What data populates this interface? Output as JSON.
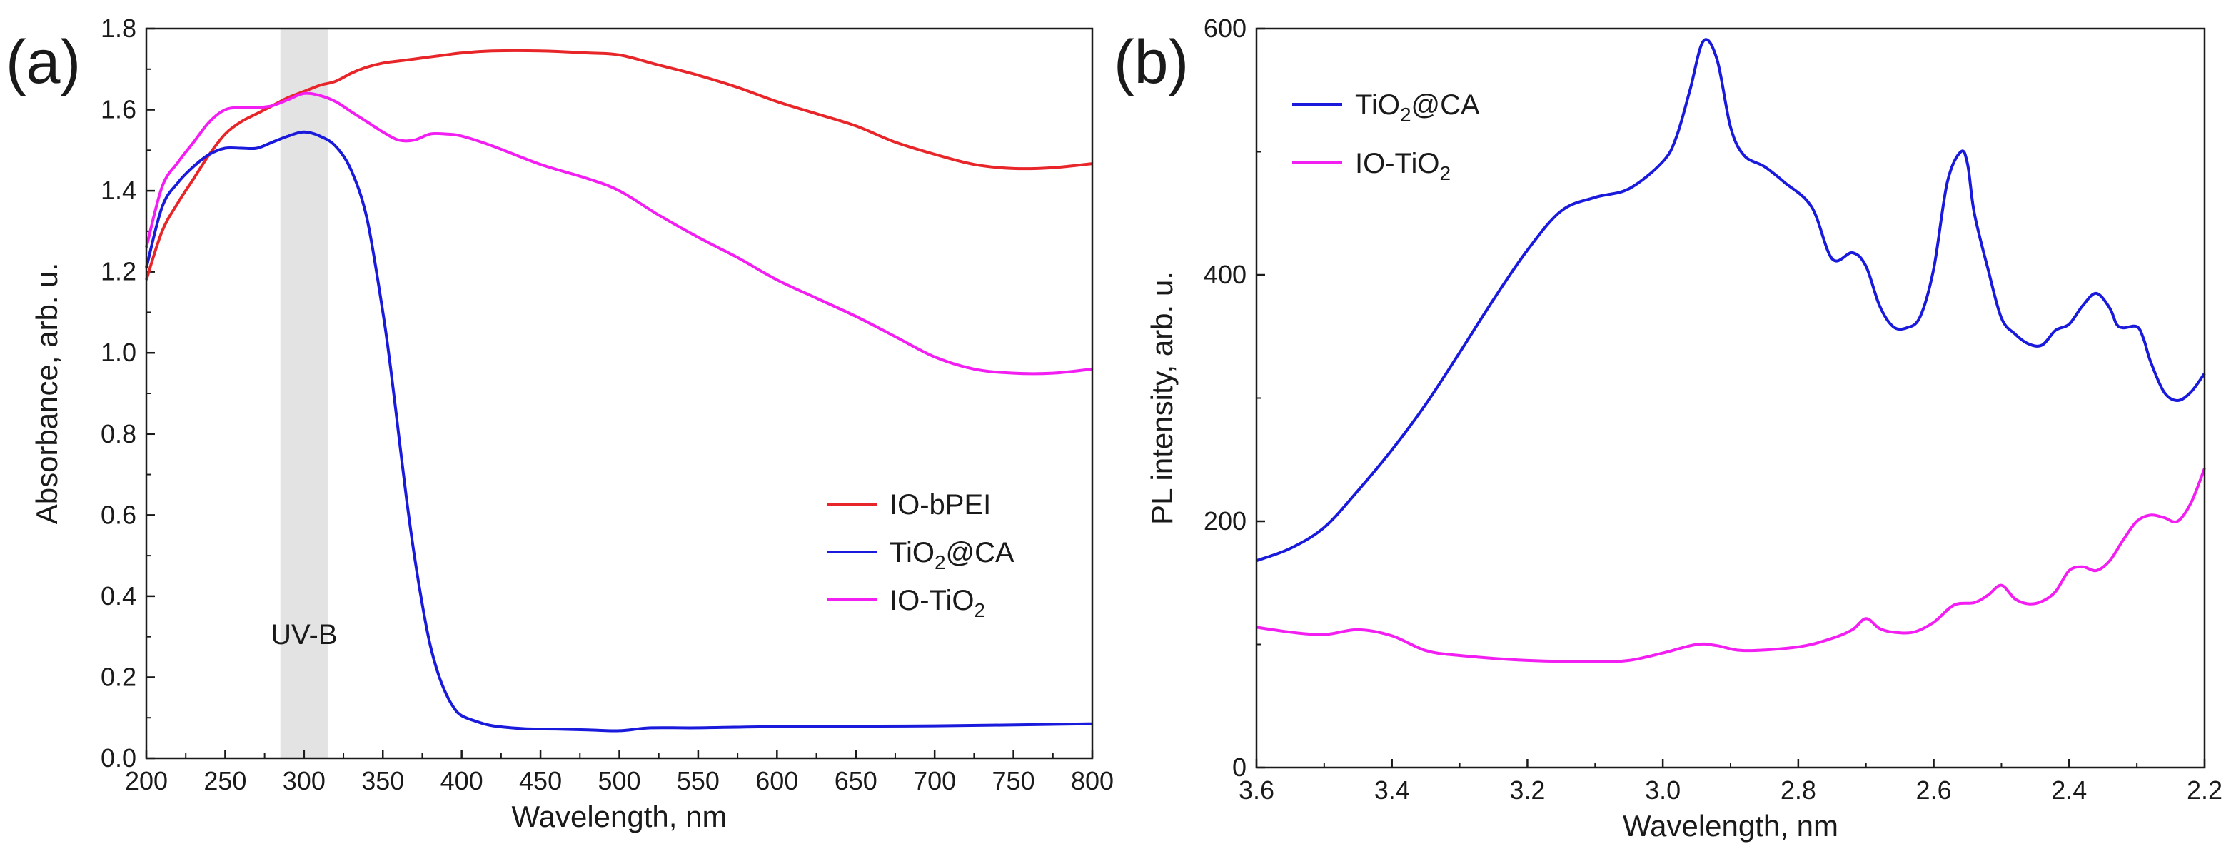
{
  "figure": {
    "panel_labels": [
      "(a)",
      "(b)"
    ]
  },
  "colors": {
    "red": "#e8262a",
    "blue": "#1a1adc",
    "magenta": "#f21ef2",
    "band": "#e3e3e3",
    "axis": "#1a1a1a"
  },
  "chart_data": [
    {
      "type": "line",
      "panel": "(a)",
      "title": "",
      "xlabel": "Wavelength, nm",
      "ylabel": "Absorbance, arb. u.",
      "xlim": [
        200,
        800
      ],
      "ylim": [
        0.0,
        1.8
      ],
      "xticks": [
        200,
        250,
        300,
        350,
        400,
        450,
        500,
        550,
        600,
        650,
        700,
        750,
        800
      ],
      "yticks": [
        "0.0",
        "0.2",
        "0.4",
        "0.6",
        "0.8",
        "1.0",
        "1.2",
        "1.4",
        "1.6",
        "1.8"
      ],
      "legend_position": "lower-right",
      "annotations": [
        {
          "text": "UV-B",
          "band_x": [
            285,
            315
          ]
        }
      ],
      "series": [
        {
          "name": "IO-bPEI",
          "html_name": "IO-bPEI",
          "color": "#e8262a",
          "x": [
            200,
            210,
            220,
            230,
            240,
            250,
            260,
            270,
            280,
            290,
            300,
            310,
            320,
            330,
            340,
            350,
            360,
            370,
            380,
            390,
            400,
            420,
            450,
            480,
            500,
            525,
            550,
            575,
            600,
            625,
            650,
            675,
            700,
            725,
            750,
            775,
            800
          ],
          "y": [
            1.18,
            1.3,
            1.37,
            1.43,
            1.49,
            1.54,
            1.57,
            1.59,
            1.61,
            1.63,
            1.645,
            1.66,
            1.67,
            1.69,
            1.705,
            1.715,
            1.72,
            1.725,
            1.73,
            1.735,
            1.74,
            1.745,
            1.745,
            1.74,
            1.735,
            1.71,
            1.685,
            1.655,
            1.62,
            1.59,
            1.56,
            1.52,
            1.49,
            1.465,
            1.455,
            1.457,
            1.467
          ]
        },
        {
          "name": "TiO2@CA",
          "html_name": "TiO<sub>2</sub>@CA",
          "color": "#1a1adc",
          "x": [
            200,
            210,
            220,
            230,
            240,
            250,
            260,
            270,
            280,
            290,
            300,
            310,
            320,
            330,
            340,
            350,
            355,
            360,
            365,
            370,
            375,
            380,
            385,
            390,
            395,
            400,
            410,
            420,
            440,
            460,
            480,
            500,
            520,
            550,
            600,
            700,
            800
          ],
          "y": [
            1.21,
            1.36,
            1.42,
            1.46,
            1.49,
            1.505,
            1.505,
            1.505,
            1.52,
            1.535,
            1.545,
            1.535,
            1.51,
            1.45,
            1.33,
            1.1,
            0.96,
            0.8,
            0.64,
            0.5,
            0.38,
            0.28,
            0.21,
            0.16,
            0.125,
            0.105,
            0.09,
            0.08,
            0.073,
            0.072,
            0.07,
            0.068,
            0.075,
            0.075,
            0.078,
            0.08,
            0.085
          ]
        },
        {
          "name": "IO-TiO2",
          "html_name": "IO-TiO<sub>2</sub>",
          "color": "#f21ef2",
          "x": [
            200,
            210,
            220,
            230,
            240,
            250,
            260,
            270,
            280,
            290,
            300,
            310,
            320,
            330,
            340,
            350,
            360,
            370,
            380,
            390,
            400,
            420,
            450,
            480,
            500,
            525,
            550,
            575,
            600,
            625,
            650,
            675,
            700,
            725,
            750,
            775,
            800
          ],
          "y": [
            1.26,
            1.41,
            1.47,
            1.52,
            1.57,
            1.6,
            1.605,
            1.605,
            1.61,
            1.625,
            1.64,
            1.635,
            1.62,
            1.595,
            1.57,
            1.545,
            1.525,
            1.525,
            1.54,
            1.54,
            1.535,
            1.51,
            1.465,
            1.43,
            1.4,
            1.34,
            1.285,
            1.235,
            1.18,
            1.135,
            1.09,
            1.04,
            0.99,
            0.96,
            0.95,
            0.95,
            0.96
          ]
        }
      ]
    },
    {
      "type": "line",
      "panel": "(b)",
      "title": "",
      "xlabel": "Wavelength, nm",
      "ylabel": "PL intensity, arb. u.",
      "xlim": [
        3.6,
        2.2
      ],
      "ylim": [
        0,
        600
      ],
      "xticks": [
        "3.6",
        "3.4",
        "3.2",
        "3.0",
        "2.8",
        "2.6",
        "2.4",
        "2.2"
      ],
      "yticks": [
        "0",
        "200",
        "400",
        "600"
      ],
      "legend_position": "top-left",
      "series": [
        {
          "name": "TiO2@CA",
          "html_name": "TiO<sub>2</sub>@CA",
          "color": "#1a1adc",
          "x": [
            3.6,
            3.55,
            3.5,
            3.45,
            3.4,
            3.35,
            3.3,
            3.25,
            3.2,
            3.15,
            3.1,
            3.05,
            3.0,
            2.98,
            2.96,
            2.94,
            2.92,
            2.9,
            2.88,
            2.85,
            2.82,
            2.78,
            2.75,
            2.72,
            2.7,
            2.68,
            2.66,
            2.64,
            2.62,
            2.6,
            2.58,
            2.56,
            2.55,
            2.54,
            2.52,
            2.5,
            2.48,
            2.46,
            2.44,
            2.42,
            2.4,
            2.38,
            2.36,
            2.34,
            2.33,
            2.32,
            2.3,
            2.29,
            2.28,
            2.26,
            2.24,
            2.22,
            2.2
          ],
          "y": [
            168,
            178,
            195,
            225,
            258,
            295,
            337,
            380,
            420,
            452,
            463,
            470,
            492,
            512,
            550,
            590,
            575,
            520,
            497,
            488,
            475,
            455,
            413,
            418,
            407,
            375,
            358,
            357,
            366,
            405,
            475,
            500,
            490,
            450,
            405,
            365,
            352,
            344,
            343,
            355,
            360,
            375,
            385,
            373,
            360,
            357,
            358,
            348,
            330,
            305,
            298,
            305,
            320
          ]
        },
        {
          "name": "IO-TiO2",
          "html_name": "IO-TiO<sub>2</sub>",
          "color": "#f21ef2",
          "x": [
            3.6,
            3.55,
            3.5,
            3.45,
            3.4,
            3.35,
            3.3,
            3.2,
            3.1,
            3.05,
            3.0,
            2.95,
            2.92,
            2.88,
            2.8,
            2.75,
            2.72,
            2.7,
            2.68,
            2.66,
            2.63,
            2.6,
            2.57,
            2.54,
            2.52,
            2.5,
            2.48,
            2.46,
            2.44,
            2.42,
            2.4,
            2.38,
            2.36,
            2.34,
            2.32,
            2.3,
            2.28,
            2.26,
            2.24,
            2.22,
            2.2
          ],
          "y": [
            114,
            110,
            108,
            112,
            107,
            95,
            91,
            87,
            86,
            87,
            93,
            100,
            99,
            95,
            98,
            105,
            112,
            121,
            113,
            110,
            110,
            118,
            132,
            134,
            140,
            148,
            137,
            133,
            135,
            143,
            160,
            163,
            160,
            168,
            185,
            200,
            205,
            203,
            200,
            215,
            243
          ]
        }
      ]
    }
  ]
}
